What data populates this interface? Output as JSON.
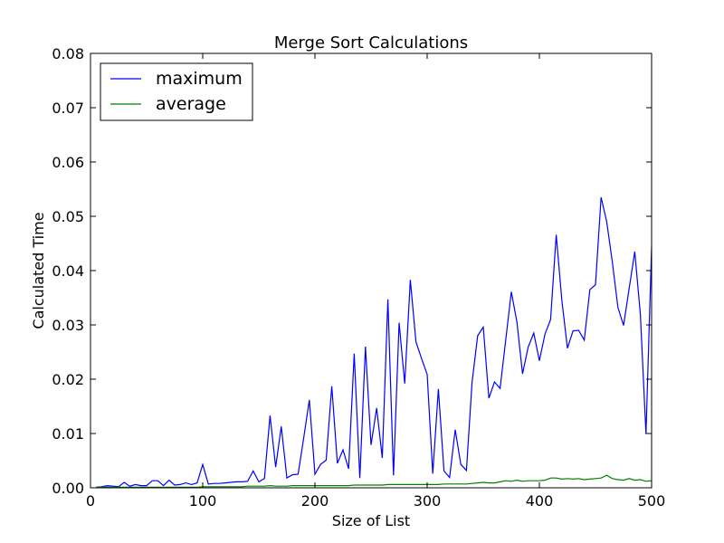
{
  "chart_data": {
    "type": "line",
    "title": "Merge Sort Calculations",
    "xlabel": "Size of List",
    "ylabel": "Calculated Time",
    "xlim": [
      0,
      500
    ],
    "ylim": [
      0,
      0.08
    ],
    "xticks": [
      "0",
      "100",
      "200",
      "300",
      "400",
      "500"
    ],
    "yticks": [
      "0.00",
      "0.01",
      "0.02",
      "0.03",
      "0.04",
      "0.05",
      "0.06",
      "0.07",
      "0.08"
    ],
    "grid": false,
    "legend_position": "top-left",
    "x": [
      5,
      10,
      15,
      20,
      25,
      30,
      35,
      40,
      45,
      50,
      55,
      60,
      65,
      70,
      75,
      80,
      85,
      90,
      95,
      100,
      105,
      110,
      115,
      120,
      125,
      130,
      135,
      140,
      145,
      150,
      155,
      160,
      165,
      170,
      175,
      180,
      185,
      190,
      195,
      200,
      205,
      210,
      215,
      220,
      225,
      230,
      235,
      240,
      245,
      250,
      255,
      260,
      265,
      270,
      275,
      280,
      285,
      290,
      295,
      300,
      305,
      310,
      315,
      320,
      325,
      330,
      335,
      340,
      345,
      350,
      355,
      360,
      365,
      370,
      375,
      380,
      385,
      390,
      395,
      400,
      405,
      410,
      415,
      420,
      425,
      430,
      435,
      440,
      445,
      450,
      455,
      460,
      465,
      470,
      475,
      480,
      485,
      490,
      495,
      500
    ],
    "series": [
      {
        "name": "maximum",
        "color": "#0000ff",
        "values": [
          0.0001,
          0.0002,
          0.0004,
          0.0003,
          0.0002,
          0.001,
          0.0003,
          0.0006,
          0.0004,
          0.0004,
          0.0013,
          0.0013,
          0.0004,
          0.0014,
          0.0005,
          0.0006,
          0.0009,
          0.0006,
          0.0009,
          0.0043,
          0.0007,
          0.0008,
          0.0008,
          0.0009,
          0.001,
          0.0011,
          0.0011,
          0.0012,
          0.0031,
          0.0011,
          0.0017,
          0.0133,
          0.0038,
          0.0113,
          0.0018,
          0.0024,
          0.0025,
          0.0092,
          0.0162,
          0.0025,
          0.0043,
          0.0051,
          0.0187,
          0.0045,
          0.007,
          0.0035,
          0.0247,
          0.0018,
          0.026,
          0.0079,
          0.0147,
          0.0055,
          0.0347,
          0.0023,
          0.0304,
          0.0192,
          0.0383,
          0.0269,
          0.0238,
          0.0209,
          0.0026,
          0.0182,
          0.0031,
          0.0019,
          0.0107,
          0.0043,
          0.0032,
          0.0194,
          0.028,
          0.0296,
          0.0165,
          0.0195,
          0.0183,
          0.0272,
          0.0361,
          0.0305,
          0.021,
          0.0259,
          0.0285,
          0.0234,
          0.0283,
          0.031,
          0.0466,
          0.0346,
          0.0257,
          0.0289,
          0.029,
          0.0272,
          0.0365,
          0.0374,
          0.0535,
          0.049,
          0.0416,
          0.0332,
          0.0299,
          0.0367,
          0.0435,
          0.0319,
          0.0099,
          0.0443
        ]
      },
      {
        "name": "average",
        "color": "#008000",
        "values": [
          0.0001,
          0.0001,
          0.0001,
          0.0001,
          0.0001,
          0.0001,
          0.0001,
          0.0001,
          0.0001,
          0.0001,
          0.0001,
          0.0001,
          0.0001,
          0.0001,
          0.0001,
          0.0001,
          0.0001,
          0.0001,
          0.0001,
          0.0002,
          0.0002,
          0.0002,
          0.0002,
          0.0002,
          0.0002,
          0.0002,
          0.0002,
          0.0003,
          0.0003,
          0.0003,
          0.0003,
          0.0004,
          0.0003,
          0.0003,
          0.0003,
          0.0004,
          0.0004,
          0.0004,
          0.0004,
          0.0004,
          0.0004,
          0.0004,
          0.0004,
          0.0004,
          0.0004,
          0.0004,
          0.0005,
          0.0005,
          0.0005,
          0.0005,
          0.0005,
          0.0005,
          0.0006,
          0.0006,
          0.0006,
          0.0006,
          0.0006,
          0.0006,
          0.0006,
          0.0006,
          0.0006,
          0.0006,
          0.0007,
          0.0007,
          0.0007,
          0.0007,
          0.0007,
          0.0008,
          0.0009,
          0.001,
          0.0009,
          0.0009,
          0.0011,
          0.0013,
          0.0012,
          0.0014,
          0.0012,
          0.0013,
          0.0013,
          0.0013,
          0.0014,
          0.0018,
          0.0018,
          0.0016,
          0.0017,
          0.0016,
          0.0017,
          0.0015,
          0.0016,
          0.0017,
          0.0018,
          0.0023,
          0.0017,
          0.0015,
          0.0014,
          0.0017,
          0.0014,
          0.0015,
          0.0012,
          0.0013
        ]
      }
    ]
  }
}
